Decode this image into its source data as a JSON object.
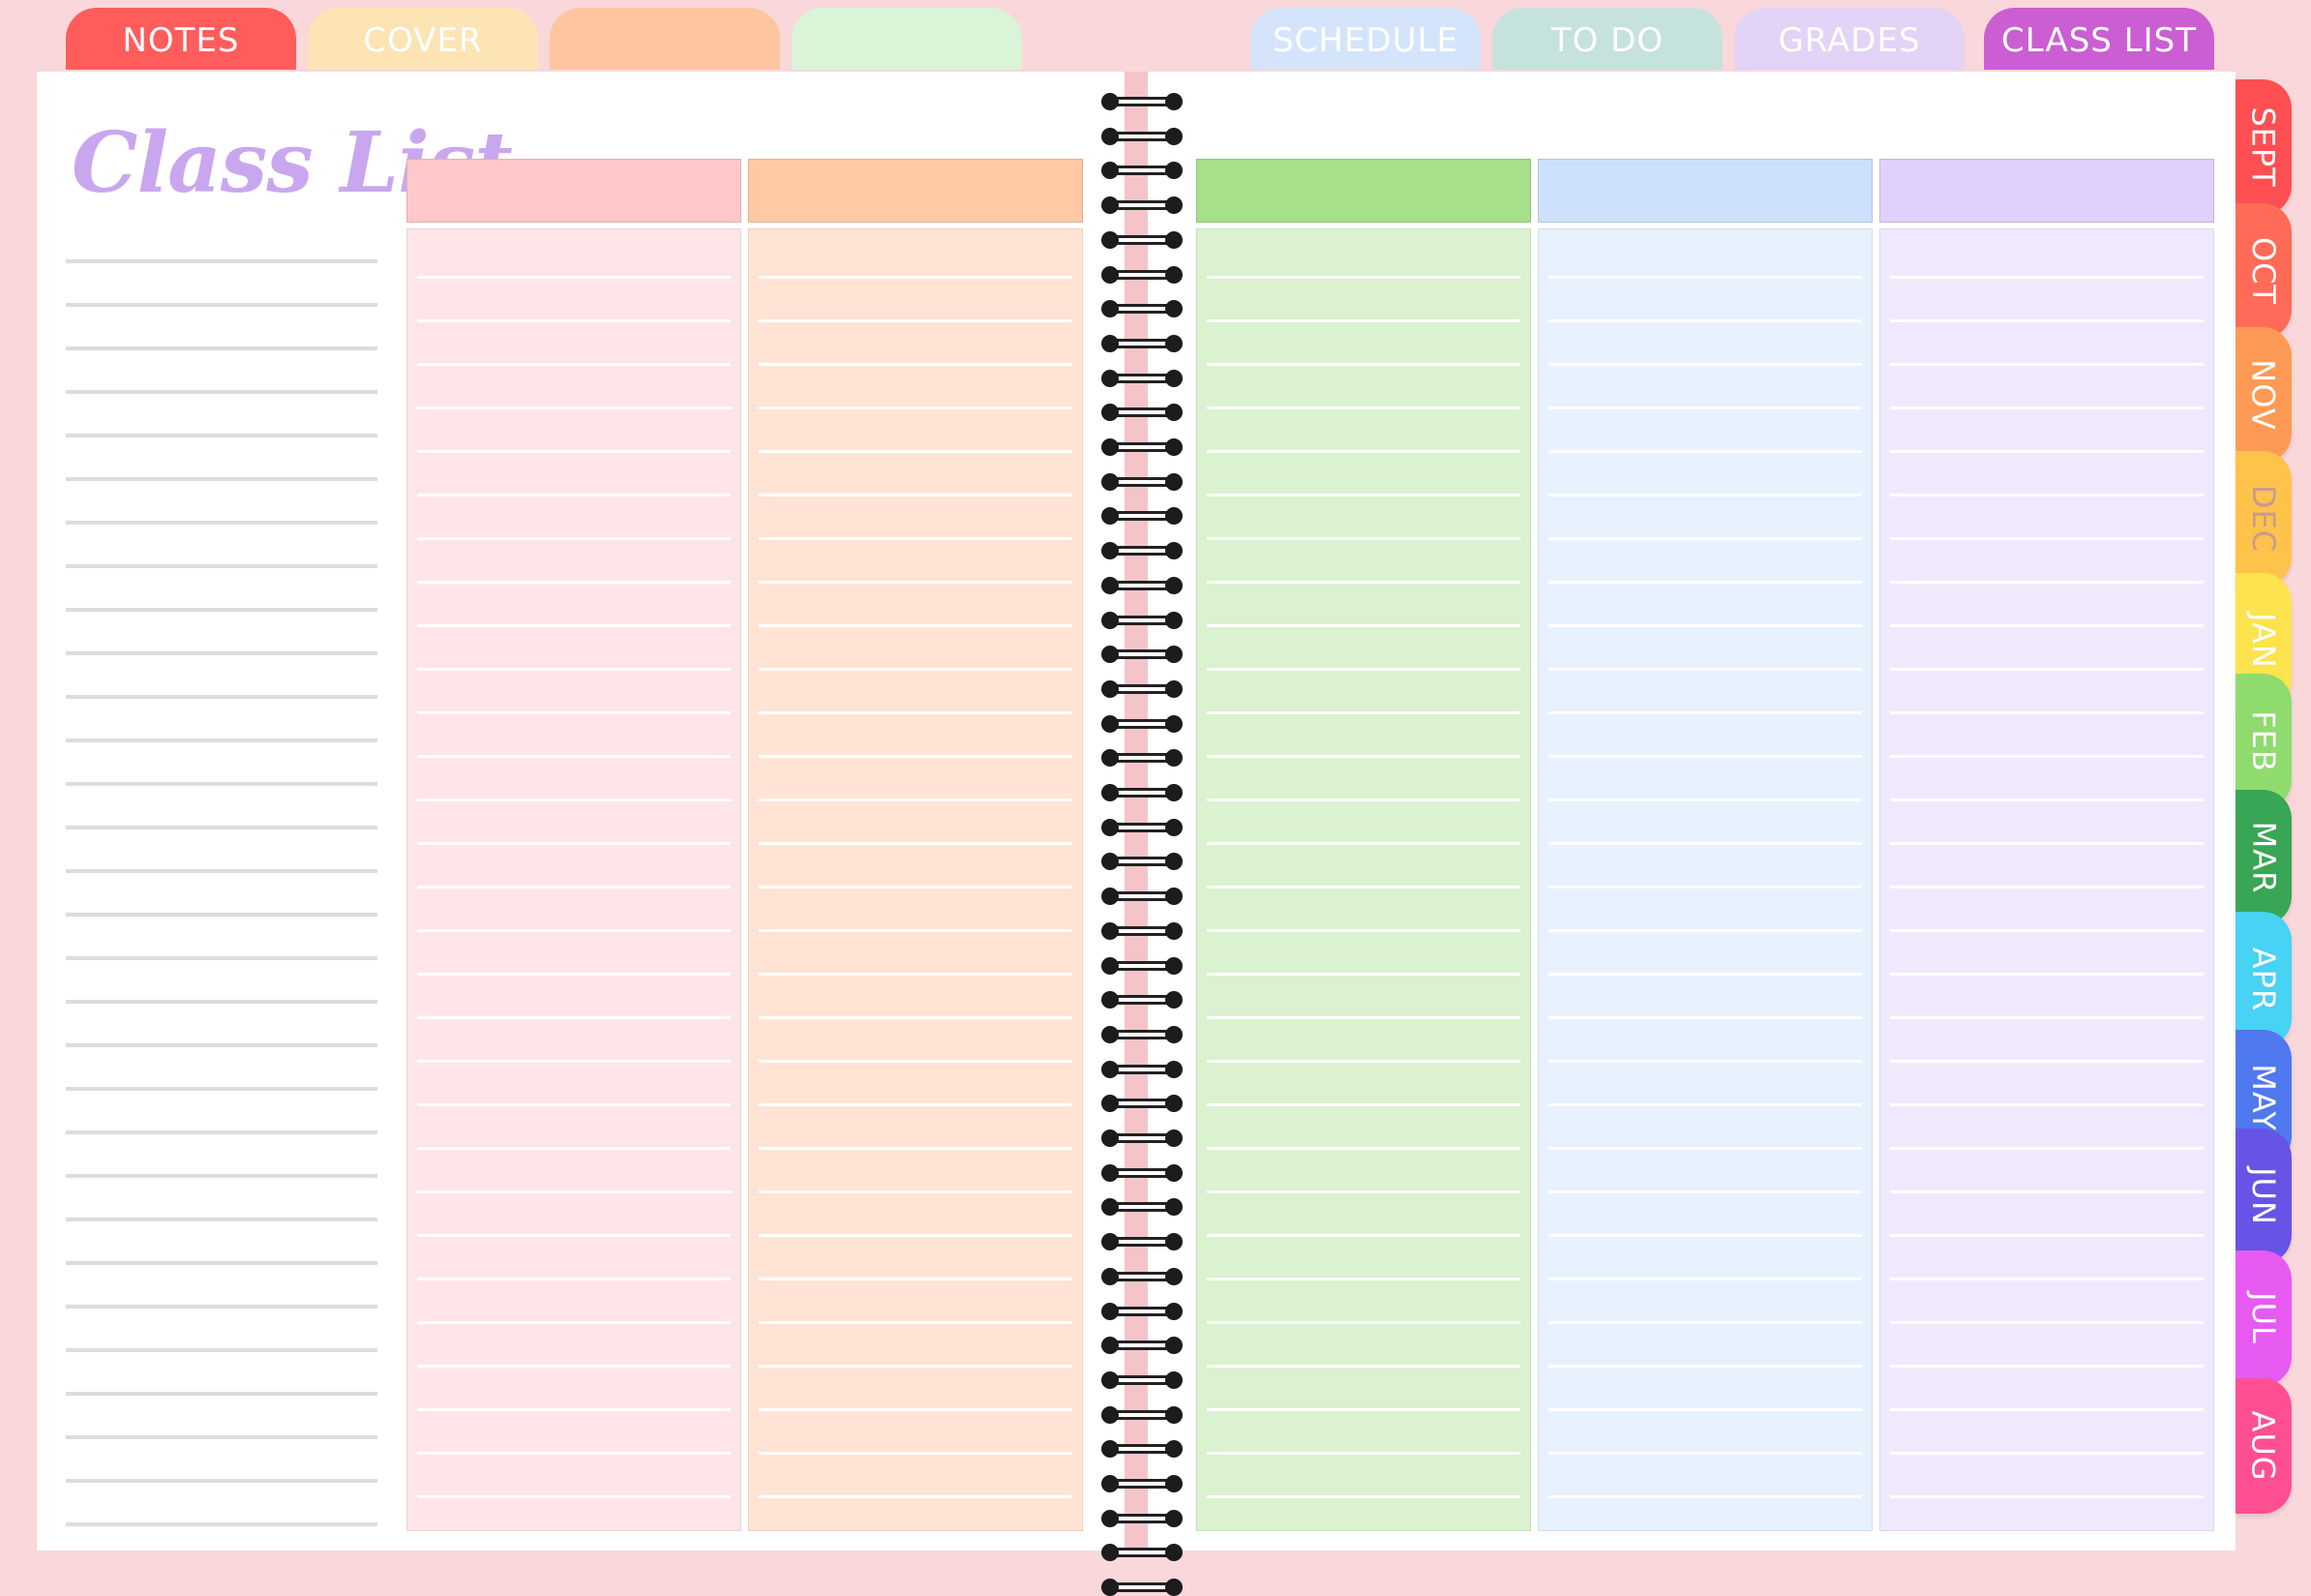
{
  "top_tabs": [
    {
      "label": "NOTES",
      "color": "#fe5d5c",
      "text_color": "#ffffff"
    },
    {
      "label": "COVER",
      "color": "#fde4b5",
      "text_color": "#ffffff"
    },
    {
      "label": "",
      "color": "#fdc6a1",
      "text_color": "#ffffff"
    },
    {
      "label": "",
      "color": "#daf4d8",
      "text_color": "#ffffff"
    },
    {
      "label": "SCHEDULE",
      "color": "#d4e5fb",
      "text_color": "#ffffff"
    },
    {
      "label": "TO DO",
      "color": "#c6e2dd",
      "text_color": "#ffffff"
    },
    {
      "label": "GRADES",
      "color": "#e3d3f6",
      "text_color": "#ffffff"
    },
    {
      "label": "CLASS LIST",
      "color": "#cb5ed2",
      "text_color": "#ffffff"
    }
  ],
  "page_title": "Class List",
  "columns": [
    {
      "header_color": "#ffc8ca",
      "body_color": "#ffe5e7"
    },
    {
      "header_color": "#ffc9a6",
      "body_color": "#ffe4d5"
    },
    {
      "header_color": "#a6e08b",
      "body_color": "#daf2cf"
    },
    {
      "header_color": "#cde1fd",
      "body_color": "#e8f1fe"
    },
    {
      "header_color": "#e1d0fb",
      "body_color": "#f0e9fd"
    }
  ],
  "side_tabs": [
    {
      "label": "SEPT",
      "color": "#fe4f53",
      "text_color": "#ffffff"
    },
    {
      "label": "OCT",
      "color": "#ff6b57",
      "text_color": "#ffffff"
    },
    {
      "label": "NOV",
      "color": "#ff9a56",
      "text_color": "#ffffff"
    },
    {
      "label": "DEC",
      "color": "#ffc24a",
      "text_color": "#c89b8f"
    },
    {
      "label": "JAN",
      "color": "#fde34e",
      "text_color": "#ffffff"
    },
    {
      "label": "FEB",
      "color": "#8fdb6e",
      "text_color": "#ffffff"
    },
    {
      "label": "MAR",
      "color": "#39a655",
      "text_color": "#ffffff"
    },
    {
      "label": "APR",
      "color": "#48d2f3",
      "text_color": "#ffffff"
    },
    {
      "label": "MAY",
      "color": "#5078ef",
      "text_color": "#ffffff"
    },
    {
      "label": "JUN",
      "color": "#6654e6",
      "text_color": "#ffffff"
    },
    {
      "label": "JUL",
      "color": "#e75af1",
      "text_color": "#ffffff"
    },
    {
      "label": "AUG",
      "color": "#ff4f93",
      "text_color": "#ffffff"
    }
  ]
}
